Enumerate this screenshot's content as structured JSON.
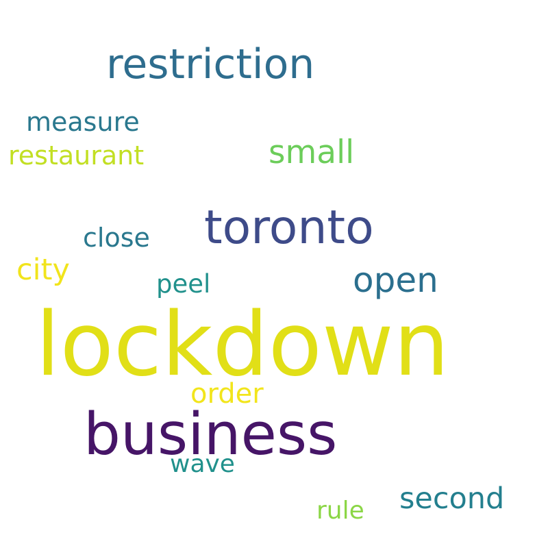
{
  "words": [
    {
      "id": "lockdown",
      "text": "lockdown",
      "color": "#e1df17"
    },
    {
      "id": "business",
      "text": "business",
      "color": "#461567"
    },
    {
      "id": "restriction",
      "text": "restriction",
      "color": "#2e6d8e"
    },
    {
      "id": "toronto",
      "text": "toronto",
      "color": "#3e4b89"
    },
    {
      "id": "open",
      "text": "open",
      "color": "#2b6f8e"
    },
    {
      "id": "small",
      "text": "small",
      "color": "#6ccd5a"
    },
    {
      "id": "second",
      "text": "second",
      "color": "#237f8e"
    },
    {
      "id": "restaurant",
      "text": "restaurant",
      "color": "#c2df23"
    },
    {
      "id": "measure",
      "text": "measure",
      "color": "#2a788e"
    },
    {
      "id": "close",
      "text": "close",
      "color": "#2a788e"
    },
    {
      "id": "city",
      "text": "city",
      "color": "#f1e41c"
    },
    {
      "id": "order",
      "text": "order",
      "color": "#f2e51c"
    },
    {
      "id": "peel",
      "text": "peel",
      "color": "#21918c"
    },
    {
      "id": "wave",
      "text": "wave",
      "color": "#21918c"
    },
    {
      "id": "rule",
      "text": "rule",
      "color": "#8bd646"
    }
  ]
}
